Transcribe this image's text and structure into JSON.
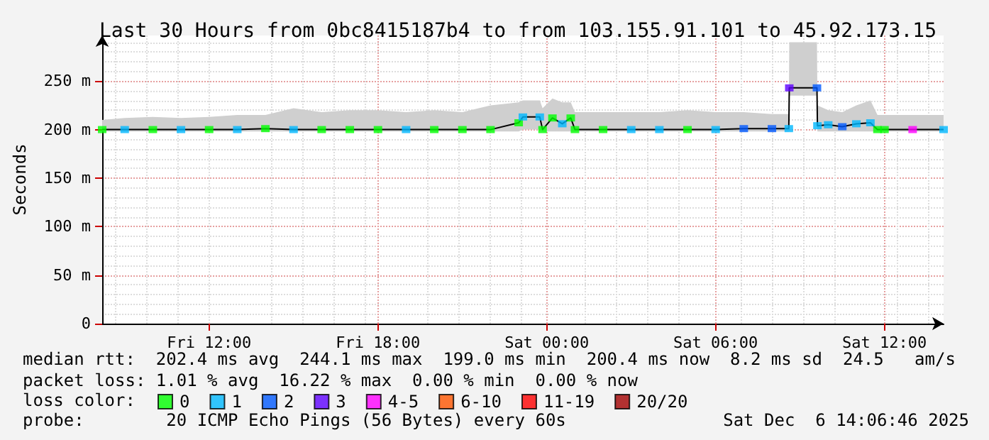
{
  "chart_data": {
    "type": "line",
    "title": "Last 30 Hours from 0bc8415187b4 to from 103.155.91.101 to 45.92.173.15",
    "ylabel": "Seconds",
    "legend_title": "loss color:",
    "legend": "bottom",
    "grid": true,
    "line_style": "solid",
    "xlim": [
      "2025-12-05T08:12",
      "2025-12-06T14:06"
    ],
    "xticks": [
      {
        "value": "2025-12-05T12:00",
        "label": "Fri 12:00"
      },
      {
        "value": "2025-12-05T18:00",
        "label": "Fri 18:00"
      },
      {
        "value": "2025-12-06T00:00",
        "label": "Sat 00:00"
      },
      {
        "value": "2025-12-06T06:00",
        "label": "Sat 06:00"
      },
      {
        "value": "2025-12-06T12:00",
        "label": "Sat 12:00"
      }
    ],
    "ylim": [
      0,
      297
    ],
    "yticks": [
      0,
      {
        "value": 50,
        "label": "50 m"
      },
      {
        "value": 100,
        "label": "100 m"
      },
      {
        "value": 150,
        "label": "150 m"
      },
      {
        "value": 200,
        "label": "200 m"
      },
      {
        "value": 250,
        "label": "250 m"
      }
    ],
    "x": [
      "2025-12-05T08:12",
      "2025-12-05T09:00",
      "2025-12-05T10:00",
      "2025-12-05T11:00",
      "2025-12-05T12:00",
      "2025-12-05T13:00",
      "2025-12-05T14:00",
      "2025-12-05T15:00",
      "2025-12-05T16:00",
      "2025-12-05T17:00",
      "2025-12-05T18:00",
      "2025-12-05T19:00",
      "2025-12-05T20:00",
      "2025-12-05T21:00",
      "2025-12-05T22:00",
      "2025-12-05T23:00",
      "2025-12-05T23:09",
      "2025-12-05T23:45",
      "2025-12-05T23:51",
      "2025-12-06T00:12",
      "2025-12-06T00:33",
      "2025-12-06T00:51",
      "2025-12-06T01:00",
      "2025-12-06T02:00",
      "2025-12-06T03:00",
      "2025-12-06T04:00",
      "2025-12-06T05:00",
      "2025-12-06T06:00",
      "2025-12-06T07:00",
      "2025-12-06T08:00",
      "2025-12-06T08:36",
      "2025-12-06T08:37",
      "2025-12-06T09:36",
      "2025-12-06T09:37",
      "2025-12-06T10:00",
      "2025-12-06T10:30",
      "2025-12-06T11:00",
      "2025-12-06T11:30",
      "2025-12-06T11:45",
      "2025-12-06T12:00",
      "2025-12-06T13:00",
      "2025-12-06T14:06"
    ],
    "series": [
      {
        "color": "#000000",
        "values": [
          200,
          200,
          200,
          200,
          200,
          200,
          201,
          200,
          200,
          200,
          200,
          200,
          200,
          200,
          200,
          207,
          213,
          213,
          200,
          212,
          206,
          212,
          200,
          200,
          200,
          200,
          200,
          200,
          201,
          201,
          201,
          243,
          243,
          204,
          205,
          203,
          206,
          207,
          200,
          200,
          200,
          200
        ],
        "lower": [
          198,
          198,
          198,
          198,
          198,
          198,
          198,
          198,
          198,
          198,
          198,
          198,
          198,
          198,
          198,
          198,
          200,
          200,
          198,
          198,
          198,
          198,
          198,
          198,
          198,
          198,
          198,
          198,
          198,
          198,
          198,
          235,
          235,
          198,
          198,
          198,
          198,
          198,
          198,
          198,
          198,
          198
        ],
        "upper": [
          210,
          212,
          213,
          212,
          213,
          215,
          215,
          222,
          218,
          220,
          220,
          218,
          220,
          218,
          225,
          228,
          230,
          230,
          222,
          232,
          228,
          228,
          218,
          218,
          218,
          218,
          220,
          218,
          218,
          216,
          216,
          290,
          290,
          225,
          220,
          218,
          225,
          230,
          215,
          215,
          215,
          215
        ]
      },
      {
        "name": "0",
        "type": "scatter",
        "color": "#00ff00",
        "values": [
          200,
          null,
          200,
          null,
          200,
          null,
          201,
          null,
          200,
          200,
          200,
          null,
          200,
          200,
          200,
          207,
          null,
          null,
          200,
          212,
          null,
          212,
          200,
          200,
          null,
          null,
          200,
          null,
          null,
          null,
          null,
          null,
          null,
          null,
          null,
          null,
          null,
          null,
          200,
          200,
          null,
          null
        ]
      },
      {
        "name": "1",
        "type": "scatter",
        "color": "#00b8ff",
        "values": [
          null,
          200,
          null,
          200,
          null,
          200,
          null,
          200,
          null,
          null,
          null,
          200,
          null,
          null,
          null,
          null,
          213,
          213,
          null,
          null,
          206,
          null,
          null,
          null,
          200,
          200,
          null,
          200,
          null,
          null,
          201,
          null,
          null,
          204,
          205,
          null,
          206,
          207,
          null,
          null,
          null,
          200
        ]
      },
      {
        "name": "2",
        "type": "scatter",
        "color": "#0059ff",
        "values": [
          null,
          null,
          null,
          null,
          null,
          null,
          null,
          null,
          null,
          null,
          null,
          null,
          null,
          null,
          null,
          null,
          null,
          null,
          null,
          null,
          null,
          null,
          null,
          null,
          null,
          null,
          null,
          null,
          201,
          201,
          null,
          null,
          243,
          null,
          null,
          203,
          null,
          null,
          null,
          null,
          null,
          null
        ]
      },
      {
        "name": "3",
        "type": "scatter",
        "color": "#5e00ff",
        "values": [
          null,
          null,
          null,
          null,
          null,
          null,
          null,
          null,
          null,
          null,
          null,
          null,
          null,
          null,
          null,
          null,
          null,
          null,
          null,
          null,
          null,
          null,
          null,
          null,
          null,
          null,
          null,
          null,
          null,
          null,
          null,
          243,
          null,
          null,
          null,
          null,
          null,
          null,
          null,
          null,
          null,
          null
        ]
      },
      {
        "name": "4-5",
        "type": "scatter",
        "color": "#ff00ff",
        "values": [
          null,
          null,
          null,
          null,
          null,
          null,
          null,
          null,
          null,
          null,
          null,
          null,
          null,
          null,
          null,
          null,
          null,
          null,
          null,
          null,
          null,
          null,
          null,
          null,
          null,
          null,
          null,
          null,
          null,
          null,
          null,
          null,
          null,
          null,
          null,
          null,
          null,
          null,
          null,
          null,
          200,
          null
        ]
      },
      {
        "name": "6-10",
        "type": "scatter",
        "color": "#ff5500",
        "values": [
          null,
          null,
          null,
          null,
          null,
          null,
          null,
          null,
          null,
          null,
          null,
          null,
          null,
          null,
          null,
          null,
          null,
          null,
          null,
          null,
          null,
          null,
          null,
          null,
          null,
          null,
          null,
          null,
          null,
          null,
          null,
          null,
          null,
          null,
          null,
          null,
          null,
          null,
          null,
          null,
          null,
          null
        ]
      },
      {
        "name": "11-19",
        "type": "scatter",
        "color": "#ff0000",
        "values": [
          null,
          null,
          null,
          null,
          null,
          null,
          null,
          null,
          null,
          null,
          null,
          null,
          null,
          null,
          null,
          null,
          null,
          null,
          null,
          null,
          null,
          null,
          null,
          null,
          null,
          null,
          null,
          null,
          null,
          null,
          null,
          null,
          null,
          null,
          null,
          null,
          null,
          null,
          null,
          null,
          null,
          null
        ]
      },
      {
        "name": "20/20",
        "type": "scatter",
        "color": "#a10000",
        "values": [
          null,
          null,
          null,
          null,
          null,
          null,
          null,
          null,
          null,
          null,
          null,
          null,
          null,
          null,
          null,
          null,
          null,
          null,
          null,
          null,
          null,
          null,
          null,
          null,
          null,
          null,
          null,
          null,
          null,
          null,
          null,
          null,
          null,
          null,
          null,
          null,
          null,
          null,
          null,
          null,
          null,
          null
        ]
      }
    ],
    "annotations": [
      "median rtt:  202.4 ms avg  244.1 ms max  199.0 ms min  200.4 ms now  8.2 ms sd  24.5   am/s",
      "packet loss: 1.01 % avg  16.22 % max  0.00 % min  0.00 % now",
      "probe:        20 ICMP Echo Pings (56 Bytes) every 60s",
      "Sat Dec  6 14:06:46 2025"
    ]
  }
}
